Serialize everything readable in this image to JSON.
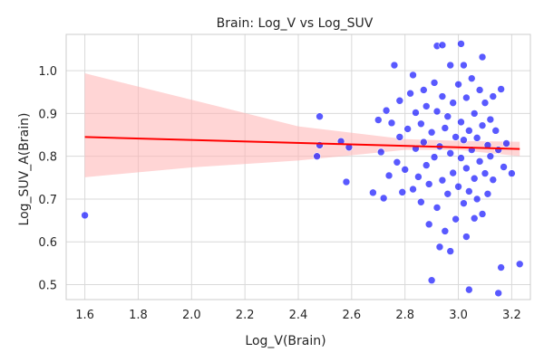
{
  "chart_data": {
    "type": "scatter",
    "title": "Brain: Log_V vs Log_SUV",
    "xlabel": "Log_V(Brain)",
    "ylabel": "Log_SUV_A(Brain)",
    "xlim": [
      1.53,
      3.27
    ],
    "ylim": [
      0.465,
      1.085
    ],
    "x_ticks": [
      1.6,
      1.8,
      2.0,
      2.2,
      2.4,
      2.6,
      2.8,
      3.0,
      3.2
    ],
    "x_tick_labels": [
      "1.6",
      "1.8",
      "2.0",
      "2.2",
      "2.4",
      "2.6",
      "2.8",
      "3.0",
      "3.2"
    ],
    "y_ticks": [
      0.5,
      0.6,
      0.7,
      0.8,
      0.9,
      1.0
    ],
    "y_tick_labels": [
      "0.5",
      "0.6",
      "0.7",
      "0.8",
      "0.9",
      "1.0"
    ],
    "grid": true,
    "point_color": "#0000ff",
    "point_edge_color": "#ffffff",
    "regression_color": "#ff0000",
    "ci_color": "#ffb3b3",
    "regression_line": {
      "x": [
        1.6,
        3.23
      ],
      "y": [
        0.845,
        0.817
      ]
    },
    "confidence_band": {
      "x": [
        1.6,
        2.0,
        2.4,
        2.8,
        3.0,
        3.23
      ],
      "upper": [
        0.994,
        0.932,
        0.87,
        0.84,
        0.836,
        0.834
      ],
      "lower": [
        0.751,
        0.774,
        0.79,
        0.815,
        0.815,
        0.8
      ]
    },
    "points": [
      {
        "x": 1.6,
        "y": 0.662
      },
      {
        "x": 2.47,
        "y": 0.8
      },
      {
        "x": 2.48,
        "y": 0.893
      },
      {
        "x": 2.48,
        "y": 0.826
      },
      {
        "x": 2.56,
        "y": 0.835
      },
      {
        "x": 2.58,
        "y": 0.74
      },
      {
        "x": 2.59,
        "y": 0.821
      },
      {
        "x": 2.68,
        "y": 0.715
      },
      {
        "x": 2.7,
        "y": 0.885
      },
      {
        "x": 2.71,
        "y": 0.81
      },
      {
        "x": 2.72,
        "y": 0.702
      },
      {
        "x": 2.73,
        "y": 0.907
      },
      {
        "x": 2.74,
        "y": 0.755
      },
      {
        "x": 2.75,
        "y": 0.878
      },
      {
        "x": 2.76,
        "y": 1.013
      },
      {
        "x": 2.77,
        "y": 0.786
      },
      {
        "x": 2.78,
        "y": 0.93
      },
      {
        "x": 2.78,
        "y": 0.845
      },
      {
        "x": 2.79,
        "y": 0.716
      },
      {
        "x": 2.8,
        "y": 0.769
      },
      {
        "x": 2.81,
        "y": 0.864
      },
      {
        "x": 2.82,
        "y": 0.947
      },
      {
        "x": 2.83,
        "y": 0.99
      },
      {
        "x": 2.83,
        "y": 0.723
      },
      {
        "x": 2.84,
        "y": 0.818
      },
      {
        "x": 2.84,
        "y": 0.902
      },
      {
        "x": 2.85,
        "y": 0.752
      },
      {
        "x": 2.86,
        "y": 0.876
      },
      {
        "x": 2.86,
        "y": 0.693
      },
      {
        "x": 2.87,
        "y": 0.955
      },
      {
        "x": 2.87,
        "y": 0.833
      },
      {
        "x": 2.88,
        "y": 0.779
      },
      {
        "x": 2.88,
        "y": 0.917
      },
      {
        "x": 2.89,
        "y": 0.735
      },
      {
        "x": 2.89,
        "y": 0.641
      },
      {
        "x": 2.9,
        "y": 0.51
      },
      {
        "x": 2.9,
        "y": 0.856
      },
      {
        "x": 2.91,
        "y": 0.972
      },
      {
        "x": 2.91,
        "y": 0.798
      },
      {
        "x": 2.92,
        "y": 1.058
      },
      {
        "x": 2.92,
        "y": 0.905
      },
      {
        "x": 2.92,
        "y": 0.68
      },
      {
        "x": 2.93,
        "y": 0.588
      },
      {
        "x": 2.93,
        "y": 0.823
      },
      {
        "x": 2.94,
        "y": 1.06
      },
      {
        "x": 2.94,
        "y": 0.94
      },
      {
        "x": 2.94,
        "y": 0.744
      },
      {
        "x": 2.95,
        "y": 0.866
      },
      {
        "x": 2.95,
        "y": 0.625
      },
      {
        "x": 2.96,
        "y": 0.712
      },
      {
        "x": 2.96,
        "y": 0.893
      },
      {
        "x": 2.97,
        "y": 1.013
      },
      {
        "x": 2.97,
        "y": 0.807
      },
      {
        "x": 2.97,
        "y": 0.578
      },
      {
        "x": 2.98,
        "y": 0.925
      },
      {
        "x": 2.98,
        "y": 0.761
      },
      {
        "x": 2.99,
        "y": 0.845
      },
      {
        "x": 2.99,
        "y": 0.653
      },
      {
        "x": 3.0,
        "y": 0.968
      },
      {
        "x": 3.0,
        "y": 0.729
      },
      {
        "x": 3.01,
        "y": 1.063
      },
      {
        "x": 3.01,
        "y": 0.88
      },
      {
        "x": 3.01,
        "y": 0.796
      },
      {
        "x": 3.02,
        "y": 1.013
      },
      {
        "x": 3.02,
        "y": 0.838
      },
      {
        "x": 3.02,
        "y": 0.69
      },
      {
        "x": 3.03,
        "y": 0.937
      },
      {
        "x": 3.03,
        "y": 0.772
      },
      {
        "x": 3.03,
        "y": 0.612
      },
      {
        "x": 3.04,
        "y": 0.488
      },
      {
        "x": 3.04,
        "y": 0.86
      },
      {
        "x": 3.04,
        "y": 0.718
      },
      {
        "x": 3.05,
        "y": 0.982
      },
      {
        "x": 3.05,
        "y": 0.815
      },
      {
        "x": 3.06,
        "y": 0.655
      },
      {
        "x": 3.06,
        "y": 0.9
      },
      {
        "x": 3.06,
        "y": 0.748
      },
      {
        "x": 3.07,
        "y": 0.843
      },
      {
        "x": 3.07,
        "y": 0.7
      },
      {
        "x": 3.08,
        "y": 0.955
      },
      {
        "x": 3.08,
        "y": 0.788
      },
      {
        "x": 3.09,
        "y": 1.032
      },
      {
        "x": 3.09,
        "y": 0.872
      },
      {
        "x": 3.09,
        "y": 0.665
      },
      {
        "x": 3.1,
        "y": 0.925
      },
      {
        "x": 3.1,
        "y": 0.76
      },
      {
        "x": 3.11,
        "y": 0.826
      },
      {
        "x": 3.11,
        "y": 0.712
      },
      {
        "x": 3.12,
        "y": 0.886
      },
      {
        "x": 3.12,
        "y": 0.8
      },
      {
        "x": 3.13,
        "y": 0.94
      },
      {
        "x": 3.13,
        "y": 0.745
      },
      {
        "x": 3.14,
        "y": 0.86
      },
      {
        "x": 3.15,
        "y": 0.48
      },
      {
        "x": 3.15,
        "y": 0.815
      },
      {
        "x": 3.16,
        "y": 0.54
      },
      {
        "x": 3.16,
        "y": 0.957
      },
      {
        "x": 3.17,
        "y": 0.775
      },
      {
        "x": 3.18,
        "y": 0.83
      },
      {
        "x": 3.2,
        "y": 0.76
      },
      {
        "x": 3.23,
        "y": 0.548
      }
    ]
  }
}
